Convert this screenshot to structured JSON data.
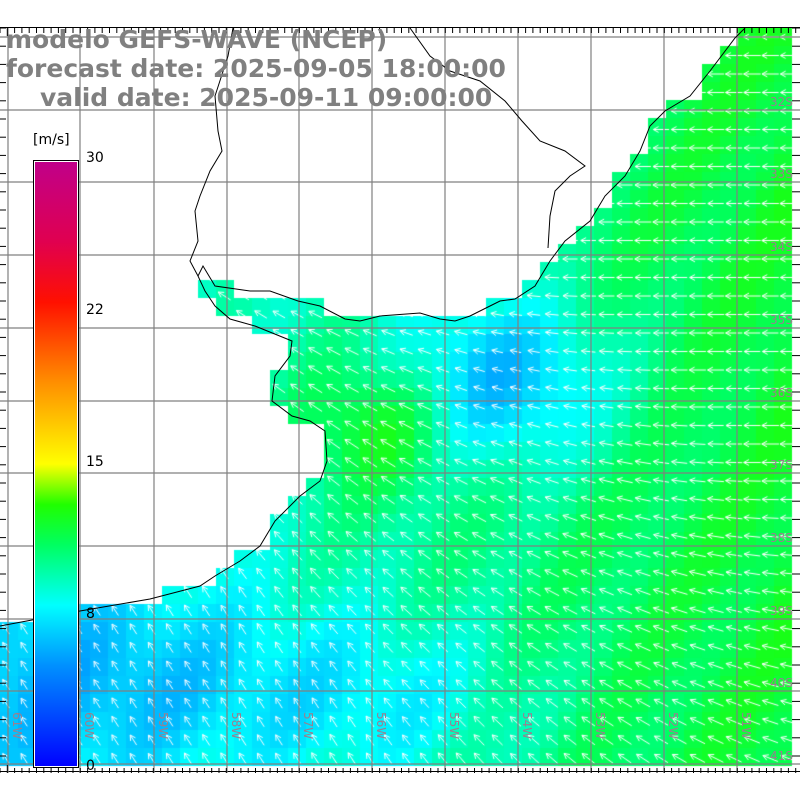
{
  "title": {
    "model": "modelo GEFS-WAVE (NCEP)",
    "forecast": "forecast date: 2025-09-05 18:00:00",
    "valid": "valid date: 2025-09-11 09:00:00"
  },
  "colorbar": {
    "unit": "[m/s]",
    "labels": [
      "30",
      "22",
      "15",
      "8",
      "0"
    ],
    "range": [
      0,
      30
    ],
    "stops": [
      {
        "v": 0,
        "c": "#0000ff"
      },
      {
        "v": 5,
        "c": "#0090ff"
      },
      {
        "v": 8,
        "c": "#00ffff"
      },
      {
        "v": 11,
        "c": "#00ff60"
      },
      {
        "v": 13,
        "c": "#20ff00"
      },
      {
        "v": 15,
        "c": "#ffff00"
      },
      {
        "v": 19,
        "c": "#ff9000"
      },
      {
        "v": 23,
        "c": "#ff1000"
      },
      {
        "v": 26,
        "c": "#e00050"
      },
      {
        "v": 30,
        "c": "#c0008a"
      }
    ]
  },
  "axes": {
    "longitudes": [
      "61W",
      "60W",
      "59W",
      "58W",
      "57W",
      "56W",
      "55W",
      "54W",
      "53W",
      "52W",
      "51W"
    ],
    "latitudes": [
      "32S",
      "33S",
      "34S",
      "35S",
      "36S",
      "37S",
      "38S",
      "39S",
      "40S",
      "41S"
    ]
  },
  "colors": {
    "grid": "#808080",
    "coast": "#000000",
    "arrow": "#ffffff",
    "label": "#9a7f8f",
    "title": "#808080"
  }
}
